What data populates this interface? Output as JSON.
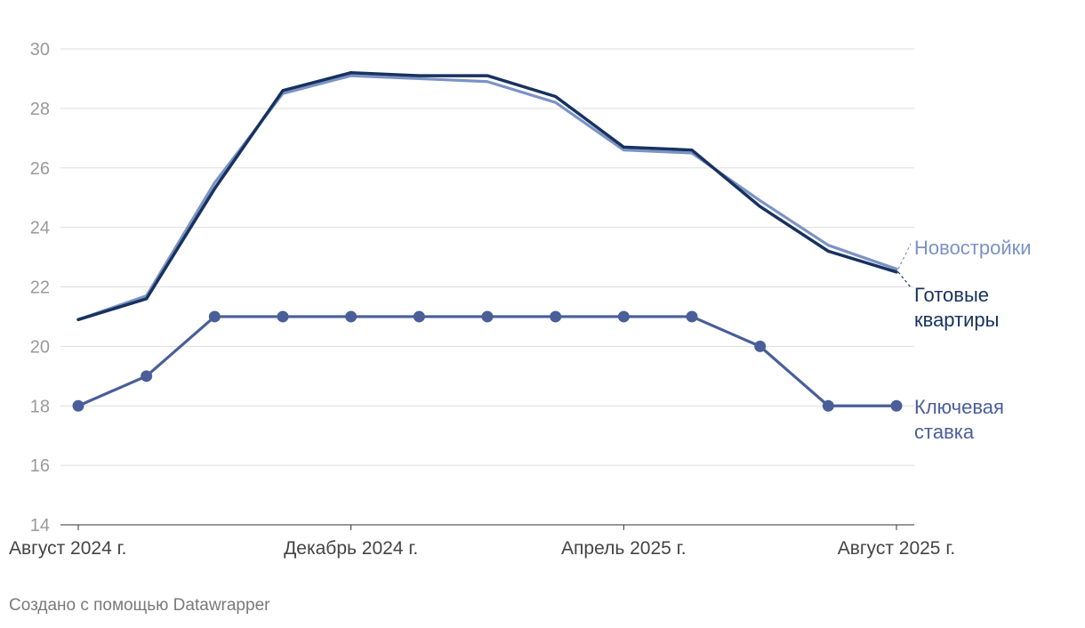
{
  "chart_data": {
    "type": "line",
    "title": "",
    "xlabel": "",
    "ylabel": "",
    "ylim": [
      14,
      30
    ],
    "yticks": [
      14,
      16,
      18,
      20,
      22,
      24,
      26,
      28,
      30
    ],
    "x": [
      "2024-08",
      "2024-09",
      "2024-10",
      "2024-11",
      "2024-12",
      "2025-01",
      "2025-02",
      "2025-03",
      "2025-04",
      "2025-05",
      "2025-06",
      "2025-07",
      "2025-08"
    ],
    "x_tick_labels": [
      {
        "x": "2024-08",
        "label": "Август 2024 г."
      },
      {
        "x": "2024-12",
        "label": "Декабрь 2024 г."
      },
      {
        "x": "2025-04",
        "label": "Апрель 2025 г."
      },
      {
        "x": "2025-08",
        "label": "Август 2025 г."
      }
    ],
    "grid": true,
    "legend": "direct labels at line ends",
    "series": [
      {
        "name": "Новостройки",
        "color": "#7b93c5",
        "values": [
          20.9,
          21.7,
          25.5,
          28.5,
          29.1,
          29.0,
          28.9,
          28.2,
          26.6,
          26.5,
          24.9,
          23.4,
          22.6
        ],
        "markers": false
      },
      {
        "name": "Готовые квартиры",
        "label_lines": [
          "Готовые",
          "квартиры"
        ],
        "color": "#17325f",
        "values": [
          20.9,
          21.6,
          25.3,
          28.6,
          29.2,
          29.1,
          29.1,
          28.4,
          26.7,
          26.6,
          24.7,
          23.2,
          22.5
        ],
        "markers": false
      },
      {
        "name": "Ключевая ставка",
        "label_lines": [
          "Ключевая",
          "ставка"
        ],
        "color": "#4a5f99",
        "values": [
          18,
          19,
          21,
          21,
          21,
          21,
          21,
          21,
          21,
          21,
          20,
          18,
          18
        ],
        "markers": true
      }
    ]
  },
  "footer": {
    "credit": "Создано с помощью Datawrapper"
  }
}
